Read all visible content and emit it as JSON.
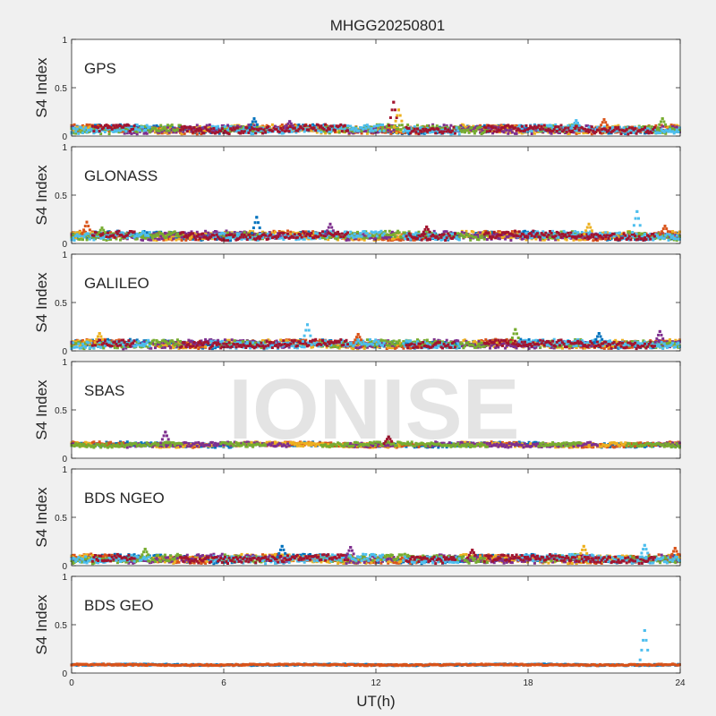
{
  "title": "MHGG20250801",
  "watermark": "IONISE",
  "chart_data": {
    "type": "scatter",
    "title": "MHGG20250801",
    "xlabel": "UT(h)",
    "ylabel": "S4 Index",
    "xlim": [
      0,
      24
    ],
    "ylim": [
      0,
      1
    ],
    "xticks": [
      0,
      6,
      12,
      18,
      24
    ],
    "yticks": [
      0,
      0.5,
      1
    ],
    "grid": false,
    "colors": [
      "#0072BD",
      "#D95319",
      "#EDB120",
      "#7E2F8E",
      "#77AC30",
      "#4DBEEE",
      "#A2142F"
    ],
    "panels": [
      {
        "label": "GPS",
        "series_count": 7,
        "baseline": 0.07,
        "spread": 0.05,
        "bumps": [
          [
            7.2,
            0.18
          ],
          [
            8.6,
            0.15
          ],
          [
            12.7,
            0.35
          ],
          [
            12.9,
            0.27
          ],
          [
            19.9,
            0.16
          ],
          [
            21.0,
            0.17
          ],
          [
            23.3,
            0.18
          ]
        ]
      },
      {
        "label": "GLONASS",
        "series_count": 7,
        "baseline": 0.08,
        "spread": 0.05,
        "bumps": [
          [
            0.6,
            0.22
          ],
          [
            1.2,
            0.16
          ],
          [
            7.3,
            0.27
          ],
          [
            10.2,
            0.2
          ],
          [
            14.0,
            0.17
          ],
          [
            20.4,
            0.2
          ],
          [
            22.3,
            0.33
          ],
          [
            23.4,
            0.18
          ]
        ]
      },
      {
        "label": "GALILEO",
        "series_count": 7,
        "baseline": 0.07,
        "spread": 0.05,
        "bumps": [
          [
            1.1,
            0.18
          ],
          [
            9.3,
            0.27
          ],
          [
            11.3,
            0.17
          ],
          [
            17.5,
            0.22
          ],
          [
            20.8,
            0.18
          ],
          [
            23.2,
            0.2
          ]
        ]
      },
      {
        "label": "SBAS",
        "series_count": 5,
        "baseline": 0.14,
        "spread": 0.03,
        "bumps": [
          [
            3.7,
            0.27
          ],
          [
            12.5,
            0.22
          ]
        ]
      },
      {
        "label": "BDS NGEO",
        "series_count": 7,
        "baseline": 0.07,
        "spread": 0.05,
        "bumps": [
          [
            2.9,
            0.17
          ],
          [
            8.3,
            0.2
          ],
          [
            11.0,
            0.19
          ],
          [
            15.8,
            0.16
          ],
          [
            20.2,
            0.2
          ],
          [
            22.6,
            0.21
          ],
          [
            23.8,
            0.18
          ]
        ]
      },
      {
        "label": "BDS GEO",
        "series_count": 2,
        "baseline": 0.085,
        "spread": 0.01,
        "bumps": [
          [
            22.6,
            0.44
          ]
        ]
      }
    ]
  }
}
